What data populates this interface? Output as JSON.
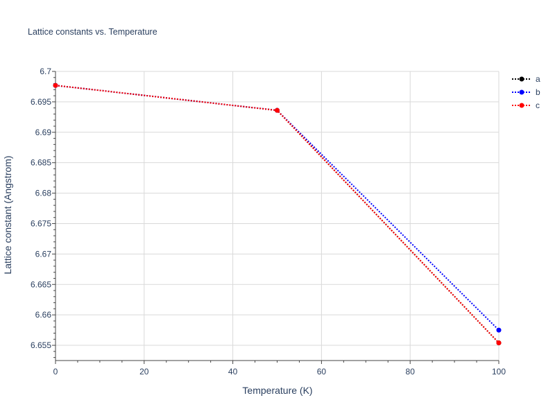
{
  "chart_data": {
    "type": "line",
    "title": "Lattice constants vs. Temperature",
    "xlabel": "Temperature (K)",
    "ylabel": "Lattice constant (Angstrom)",
    "xlim": [
      0,
      100
    ],
    "ylim": [
      6.6525,
      6.7
    ],
    "x_ticks": [
      0,
      20,
      40,
      60,
      80,
      100
    ],
    "y_ticks": [
      6.655,
      6.66,
      6.665,
      6.67,
      6.675,
      6.68,
      6.685,
      6.69,
      6.695,
      6.7
    ],
    "grid": true,
    "legend_position": "top-right",
    "line_style": "dotted",
    "series": [
      {
        "name": "a",
        "color": "#000000",
        "x": [
          0,
          50,
          100
        ],
        "y": [
          6.6977,
          6.6936,
          6.6554
        ]
      },
      {
        "name": "b",
        "color": "#0000ff",
        "x": [
          0,
          50,
          100
        ],
        "y": [
          6.6977,
          6.6936,
          6.6575
        ]
      },
      {
        "name": "c",
        "color": "#ff0000",
        "x": [
          0,
          50,
          100
        ],
        "y": [
          6.6977,
          6.6936,
          6.6554
        ]
      }
    ]
  }
}
